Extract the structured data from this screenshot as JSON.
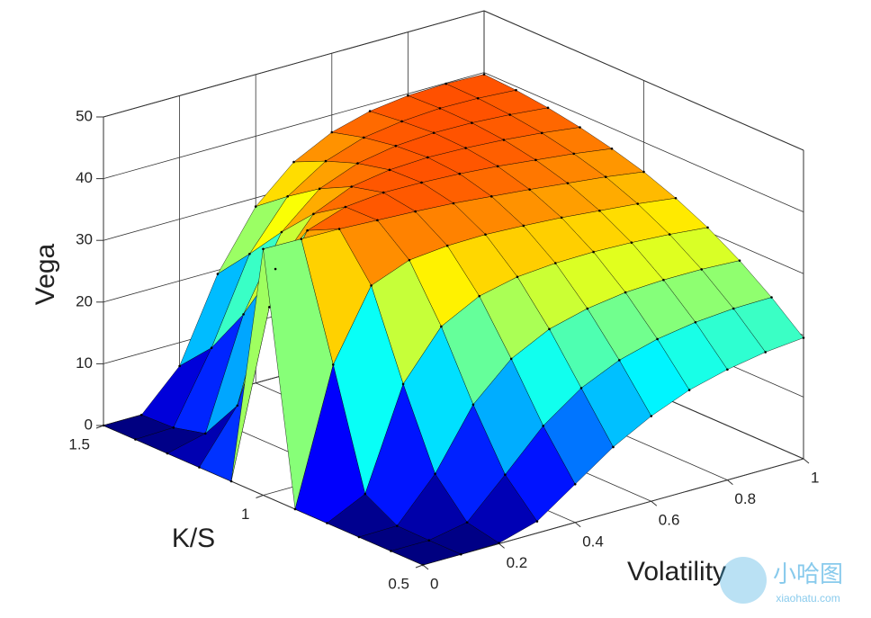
{
  "chart_data": {
    "type": "surface",
    "zlabel": "Vega",
    "xlabel": "Volatility",
    "ylabel": "K/S",
    "x": [
      0,
      0.1,
      0.2,
      0.3,
      0.4,
      0.5,
      0.6,
      0.7,
      0.8,
      0.9,
      1
    ],
    "y": [
      0.5,
      0.6,
      0.7,
      0.8,
      0.9,
      1,
      1.1,
      1.2,
      1.3,
      1.4,
      1.5
    ],
    "z": [
      [
        0,
        0,
        0.1,
        1.9,
        6.2,
        10.5,
        13.8,
        16.3,
        17.9,
        19.0,
        19.6
      ],
      [
        0,
        0,
        1.2,
        7.2,
        13.4,
        17.8,
        20.6,
        22.3,
        23.3,
        23.8,
        23.9
      ],
      [
        0,
        0.1,
        6.8,
        16.3,
        22.0,
        25.1,
        26.7,
        27.6,
        27.9,
        27.9,
        27.6
      ],
      [
        0,
        3.0,
        19.1,
        26.7,
        29.9,
        31.3,
        31.8,
        31.9,
        31.7,
        31.3,
        30.7
      ],
      [
        0,
        21.7,
        32.8,
        35.2,
        35.8,
        35.9,
        35.6,
        35.2,
        34.6,
        34.0,
        33.2
      ],
      [
        39.9,
        39.8,
        39.7,
        39.4,
        39.1,
        38.7,
        38.1,
        37.5,
        36.8,
        36.1,
        35.2
      ],
      [
        0,
        26.5,
        37.2,
        39.3,
        39.9,
        39.8,
        39.5,
        39.0,
        38.3,
        37.6,
        36.7
      ],
      [
        0,
        8.3,
        28.7,
        35.9,
        38.6,
        39.6,
        39.9,
        39.7,
        39.3,
        38.7,
        37.9
      ],
      [
        0,
        1.5,
        19.1,
        30.7,
        36.0,
        38.4,
        39.5,
        39.9,
        39.8,
        39.4,
        38.8
      ],
      [
        0,
        0.2,
        11.4,
        24.9,
        32.5,
        36.5,
        38.6,
        39.5,
        39.9,
        39.8,
        39.4
      ],
      [
        0,
        0,
        6.2,
        19.4,
        28.6,
        34.1,
        37.2,
        38.9,
        39.7,
        39.9,
        39.7
      ]
    ],
    "xlim": [
      0,
      1
    ],
    "xticks": [
      0,
      0.2,
      0.4,
      0.6,
      0.8,
      1
    ],
    "ylim": [
      0.5,
      1.5
    ],
    "yticks": [
      0.5,
      1,
      1.5
    ],
    "zlim": [
      0,
      50
    ],
    "zticks": [
      0,
      10,
      20,
      30,
      40,
      50
    ],
    "colormap": "jet",
    "grid": true,
    "watermark": {
      "text": "小哈图",
      "url": "xiaohatu.com"
    }
  }
}
